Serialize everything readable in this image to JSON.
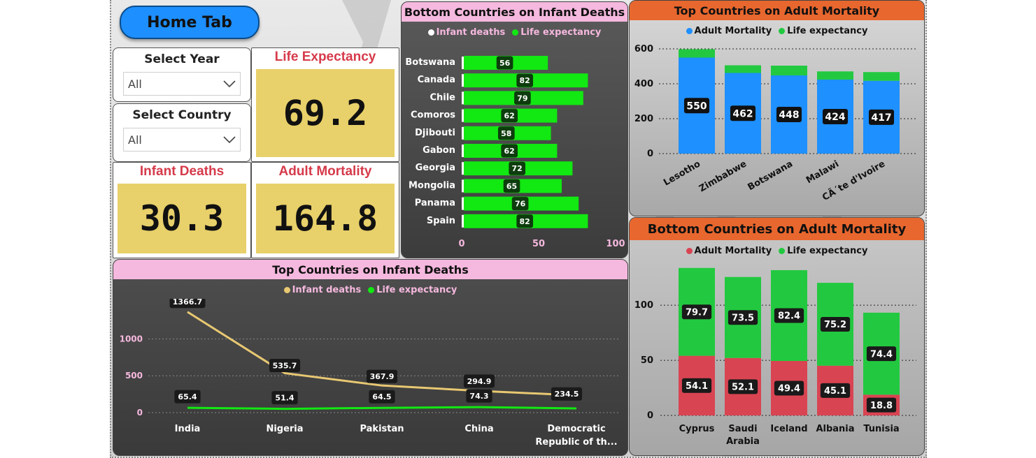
{
  "home_button": {
    "label": "Home Tab"
  },
  "slicers": {
    "year": {
      "title": "Select Year",
      "value": "All"
    },
    "country": {
      "title": "Select Country",
      "value": "All"
    }
  },
  "kpis": {
    "life_expectancy": {
      "title": "Life Expectancy",
      "value": "69.2"
    },
    "infant_deaths": {
      "title": "Infant Deaths",
      "value": "30.3"
    },
    "adult_mortality": {
      "title": "Adult Mortality",
      "value": "164.8"
    }
  },
  "colors": {
    "green": "#12e812",
    "blue": "#1e90ff",
    "red": "#d94452",
    "pink": "#f5b8de",
    "orange": "#e8672e",
    "gold": "#e8c872"
  },
  "chart_data": [
    {
      "id": "bottom-infant",
      "type": "bar",
      "title": "Bottom Countries on Infant Deaths",
      "legend": [
        "Infant deaths",
        "Life expectancy"
      ],
      "categories": [
        "Botswana",
        "Canada",
        "Chile",
        "Comoros",
        "Djibouti",
        "Gabon",
        "Georgia",
        "Mongolia",
        "Panama",
        "Spain"
      ],
      "series": [
        {
          "name": "Infant deaths",
          "values": [
            0,
            0,
            0,
            0,
            0,
            0,
            0,
            0,
            0,
            0
          ]
        },
        {
          "name": "Life expectancy",
          "values": [
            56,
            82,
            79,
            62,
            58,
            62,
            72,
            65,
            76,
            82
          ]
        }
      ],
      "xlim": [
        0,
        100
      ],
      "xticks": [
        "0",
        "50",
        "100"
      ]
    },
    {
      "id": "top-adult",
      "type": "bar",
      "title": "Top Countries on Adult Mortality",
      "legend": [
        "Adult Mortality",
        "Life expectancy"
      ],
      "categories": [
        "Lesotho",
        "Zimbabwe",
        "Botswana",
        "Malawi",
        "CÃ´te d'Ivoire"
      ],
      "series": [
        {
          "name": "Adult Mortality",
          "values": [
            550,
            462,
            448,
            424,
            417
          ]
        },
        {
          "name": "Life expectancy",
          "values": [
            48,
            44,
            56,
            47,
            50
          ]
        }
      ],
      "ylim": [
        0,
        620
      ],
      "yticks": [
        "0",
        "200",
        "400",
        "600"
      ]
    },
    {
      "id": "bottom-adult",
      "type": "bar",
      "title": "Bottom Countries on Adult Mortality",
      "legend": [
        "Adult Mortality",
        "Life expectancy"
      ],
      "categories": [
        "Cyprus",
        "Saudi Arabia",
        "Iceland",
        "Albania",
        "Tunisia"
      ],
      "series": [
        {
          "name": "Adult Mortality",
          "values": [
            54.1,
            52.1,
            49.4,
            45.1,
            18.8
          ]
        },
        {
          "name": "Life expectancy",
          "values": [
            79.7,
            73.5,
            82.4,
            75.2,
            74.4
          ]
        }
      ],
      "ylim": [
        0,
        140
      ],
      "yticks": [
        "0",
        "50",
        "100"
      ]
    },
    {
      "id": "top-infant",
      "type": "line",
      "title": "Top Countries on Infant Deaths",
      "legend": [
        "Infant deaths",
        "Life expectancy"
      ],
      "categories": [
        "India",
        "Nigeria",
        "Pakistan",
        "China",
        "Democratic Republic of th..."
      ],
      "series": [
        {
          "name": "Infant deaths",
          "values": [
            1366.7,
            535.7,
            367.9,
            294.9,
            234.5
          ]
        },
        {
          "name": "Life expectancy",
          "values": [
            65.4,
            51.4,
            64.5,
            74.3,
            57.0
          ]
        }
      ],
      "labels_life": [
        "65.4",
        "51.4",
        "64.5",
        "74.3",
        ""
      ],
      "labels_infant": [
        "1366.7",
        "535.7",
        "367.9",
        "294.9",
        "234.5"
      ],
      "ylim": [
        0,
        1450
      ],
      "yticks": [
        "0",
        "500",
        "1000"
      ]
    }
  ]
}
